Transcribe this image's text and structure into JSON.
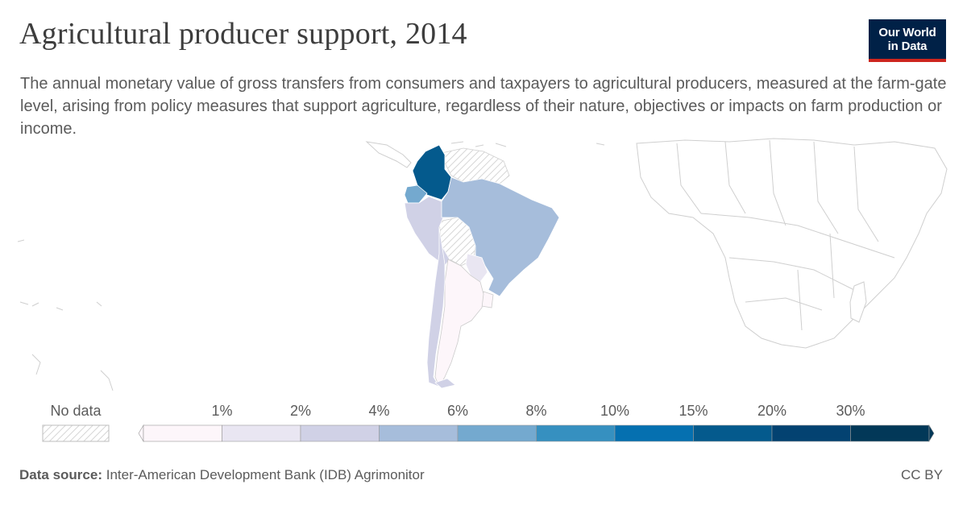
{
  "header": {
    "title": "Agricultural producer support, 2014",
    "subtitle": "The annual monetary value of gross transfers from consumers and taxpayers to agricultural producers, measured at the farm-gate level, arising from policy measures that support agriculture, regardless of their nature, objectives or impacts on farm production or income."
  },
  "logo": {
    "line1": "Our World",
    "line2": "in Data"
  },
  "legend": {
    "no_data_label": "No data",
    "bins": [
      {
        "label": "1%",
        "color": "#fdf6fa"
      },
      {
        "label": "2%",
        "color": "#e9e6f2"
      },
      {
        "label": "4%",
        "color": "#d0d1e6"
      },
      {
        "label": "6%",
        "color": "#a6bddb"
      },
      {
        "label": "8%",
        "color": "#74a9cf"
      },
      {
        "label": "10%",
        "color": "#3690c0"
      },
      {
        "label": "15%",
        "color": "#0570b0"
      },
      {
        "label": "20%",
        "color": "#045a8d"
      },
      {
        "label": "30%",
        "color": "#034271"
      },
      {
        "label": "",
        "color": "#023858"
      }
    ]
  },
  "map": {
    "countries": [
      {
        "name": "Colombia",
        "color": "#045a8d"
      },
      {
        "name": "Ecuador",
        "color": "#74a9cf"
      },
      {
        "name": "Brazil",
        "color": "#a6bddb"
      },
      {
        "name": "Peru",
        "color": "#d0d1e6"
      },
      {
        "name": "Chile",
        "color": "#d0d1e6"
      },
      {
        "name": "Argentina",
        "color": "#fdf6fa"
      },
      {
        "name": "Paraguay",
        "color": "#e9e6f2"
      },
      {
        "name": "Uruguay",
        "color": "#fdf6fa"
      }
    ]
  },
  "footer": {
    "source_label": "Data source:",
    "source_text": "Inter-American Development Bank (IDB) Agrimonitor",
    "license": "CC BY"
  }
}
